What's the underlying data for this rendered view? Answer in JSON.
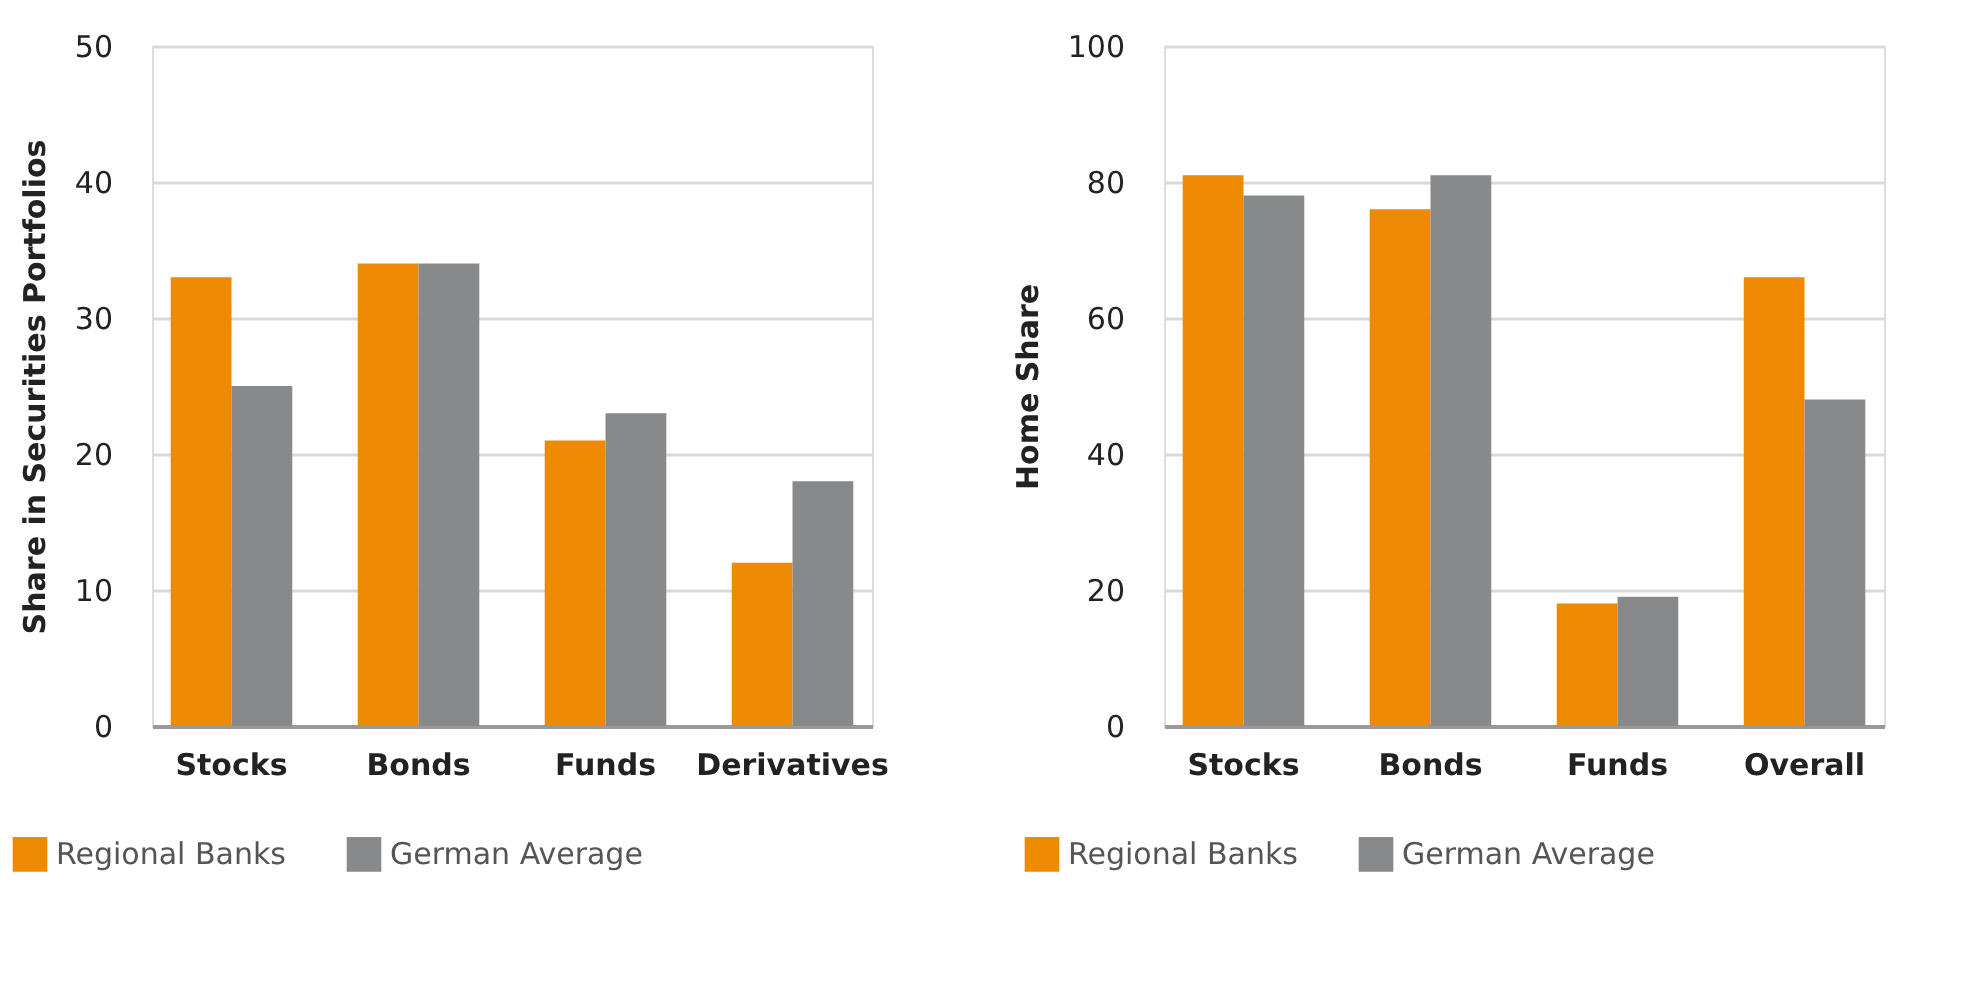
{
  "chart_data": [
    {
      "type": "bar",
      "ylabel": "Share in Securities Portfolios",
      "categories": [
        "Stocks",
        "Bonds",
        "Funds",
        "Derivatives"
      ],
      "series": [
        {
          "name": "Regional Banks",
          "color": "#ee8a00",
          "values": [
            33,
            34,
            21,
            12
          ]
        },
        {
          "name": "German Average",
          "color": "#88898b",
          "values": [
            25,
            34,
            23,
            18
          ]
        }
      ],
      "ylim": [
        0,
        50
      ],
      "yticks": [
        0,
        10,
        20,
        30,
        40,
        50
      ],
      "grid": "y",
      "legend": "bottom left"
    },
    {
      "type": "bar",
      "ylabel": "Home Share",
      "categories": [
        "Stocks",
        "Bonds",
        "Funds",
        "Overall"
      ],
      "series": [
        {
          "name": "Regional Banks",
          "color": "#ee8a00",
          "values": [
            81,
            76,
            18,
            66
          ]
        },
        {
          "name": "German Average",
          "color": "#88898b",
          "values": [
            78,
            81,
            19,
            48
          ]
        }
      ],
      "ylim": [
        0,
        100
      ],
      "yticks": [
        0,
        20,
        40,
        60,
        80,
        100
      ],
      "grid": "y",
      "legend": "bottom left"
    }
  ]
}
